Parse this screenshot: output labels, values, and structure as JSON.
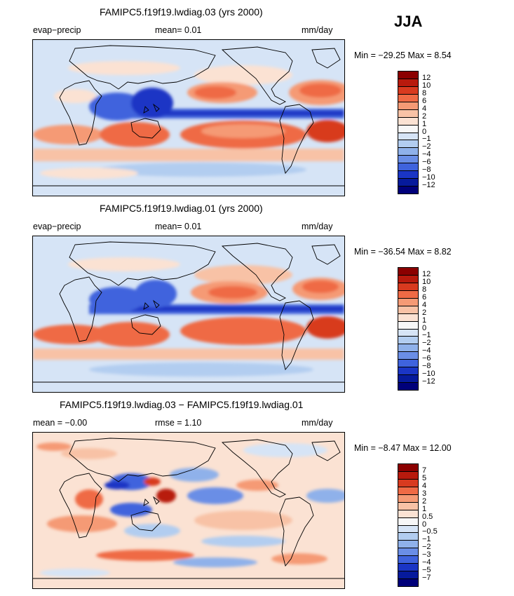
{
  "season": "JJA",
  "panels": [
    {
      "title": "FAMIPC5.f19f19.lwdiag.03 (yrs 2000)",
      "left_label": "evap−precip",
      "center_label": "mean=   0.01",
      "units": "mm/day",
      "minmax": "Min = −29.25  Max =   8.54",
      "colorbar": {
        "labels": [
          "12",
          "10",
          "8",
          "6",
          "4",
          "2",
          "1",
          "0",
          "−1",
          "−2",
          "−4",
          "−6",
          "−8",
          "−10",
          "−12"
        ],
        "colors": [
          "#8b0000",
          "#b81a0d",
          "#d83a1f",
          "#ef6a45",
          "#f59a75",
          "#f8c2a6",
          "#fbe2d3",
          "#f7f7f7",
          "#d6e4f6",
          "#b2cdf0",
          "#8fb1ea",
          "#6a8ee6",
          "#3f63dd",
          "#1a35c5",
          "#061a9c",
          "#00007a"
        ]
      }
    },
    {
      "title": "FAMIPC5.f19f19.lwdiag.01 (yrs 2000)",
      "left_label": "evap−precip",
      "center_label": "mean=   0.01",
      "units": "mm/day",
      "minmax": "Min = −36.54  Max =   8.82",
      "colorbar": {
        "labels": [
          "12",
          "10",
          "8",
          "6",
          "4",
          "2",
          "1",
          "0",
          "−1",
          "−2",
          "−4",
          "−6",
          "−8",
          "−10",
          "−12"
        ],
        "colors": [
          "#8b0000",
          "#b81a0d",
          "#d83a1f",
          "#ef6a45",
          "#f59a75",
          "#f8c2a6",
          "#fbe2d3",
          "#f7f7f7",
          "#d6e4f6",
          "#b2cdf0",
          "#8fb1ea",
          "#6a8ee6",
          "#3f63dd",
          "#1a35c5",
          "#061a9c",
          "#00007a"
        ]
      }
    },
    {
      "title": "FAMIPC5.f19f19.lwdiag.03 − FAMIPC5.f19f19.lwdiag.01",
      "left_label": "mean =   −0.00",
      "center_label": "rmse =    1.10",
      "units": "mm/day",
      "minmax": "Min =  −8.47  Max =  12.00",
      "colorbar": {
        "labels": [
          "7",
          "5",
          "4",
          "3",
          "2",
          "1",
          "0.5",
          "0",
          "−0.5",
          "−1",
          "−2",
          "−3",
          "−4",
          "−5",
          "−7"
        ],
        "colors": [
          "#8b0000",
          "#b81a0d",
          "#d83a1f",
          "#ef6a45",
          "#f59a75",
          "#f8c2a6",
          "#fbe2d3",
          "#f7f7f7",
          "#d6e4f6",
          "#b2cdf0",
          "#8fb1ea",
          "#6a8ee6",
          "#3f63dd",
          "#1a35c5",
          "#061a9c",
          "#00007a"
        ]
      }
    }
  ]
}
